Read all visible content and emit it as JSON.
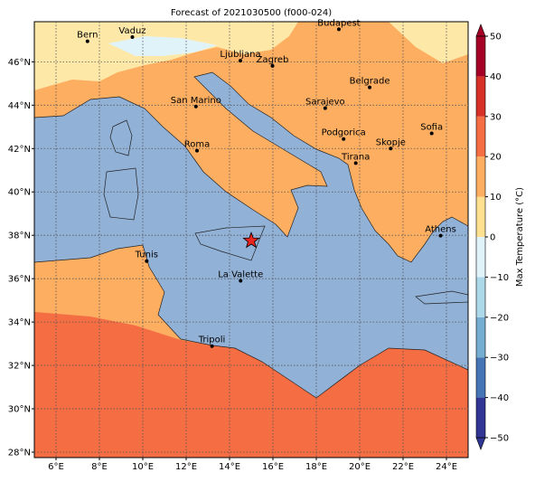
{
  "chart_data": {
    "type": "map",
    "title": "Forecast of 2021030500 (f000-024)",
    "xlim": [
      5,
      25
    ],
    "ylim": [
      27.75,
      47.85
    ],
    "xticks": [
      {
        "value": 6,
        "label": "6°E"
      },
      {
        "value": 8,
        "label": "8°E"
      },
      {
        "value": 10,
        "label": "10°E"
      },
      {
        "value": 12,
        "label": "12°E"
      },
      {
        "value": 14,
        "label": "14°E"
      },
      {
        "value": 16,
        "label": "16°E"
      },
      {
        "value": 18,
        "label": "18°E"
      },
      {
        "value": 20,
        "label": "20°E"
      },
      {
        "value": 22,
        "label": "22°E"
      },
      {
        "value": 24,
        "label": "24°E"
      }
    ],
    "yticks": [
      {
        "value": 28,
        "label": "28°N"
      },
      {
        "value": 30,
        "label": "30°N"
      },
      {
        "value": 32,
        "label": "32°N"
      },
      {
        "value": 34,
        "label": "34°N"
      },
      {
        "value": 36,
        "label": "36°N"
      },
      {
        "value": 38,
        "label": "38°N"
      },
      {
        "value": 40,
        "label": "40°N"
      },
      {
        "value": 42,
        "label": "42°N"
      },
      {
        "value": 44,
        "label": "44°N"
      },
      {
        "value": 46,
        "label": "46°N"
      }
    ],
    "grid": true,
    "cities": [
      {
        "name": "Bern",
        "lon": 7.45,
        "lat": 46.95
      },
      {
        "name": "Vaduz",
        "lon": 9.52,
        "lat": 47.14
      },
      {
        "name": "Budapest",
        "lon": 19.04,
        "lat": 47.5
      },
      {
        "name": "Ljubljana",
        "lon": 14.5,
        "lat": 46.05
      },
      {
        "name": "Zagreb",
        "lon": 15.98,
        "lat": 45.81
      },
      {
        "name": "Belgrade",
        "lon": 20.46,
        "lat": 44.82
      },
      {
        "name": "San Marino",
        "lon": 12.45,
        "lat": 43.94
      },
      {
        "name": "Sarajevo",
        "lon": 18.41,
        "lat": 43.86
      },
      {
        "name": "Sofia",
        "lon": 23.32,
        "lat": 42.7
      },
      {
        "name": "Podgorica",
        "lon": 19.26,
        "lat": 42.44
      },
      {
        "name": "Skopje",
        "lon": 21.43,
        "lat": 42.0
      },
      {
        "name": "Roma",
        "lon": 12.5,
        "lat": 41.9
      },
      {
        "name": "Tirana",
        "lon": 19.82,
        "lat": 41.33
      },
      {
        "name": "Athens",
        "lon": 23.73,
        "lat": 37.98
      },
      {
        "name": "Tunis",
        "lon": 10.18,
        "lat": 36.81
      },
      {
        "name": "La Valette",
        "lon": 14.51,
        "lat": 35.9
      },
      {
        "name": "Tripoli",
        "lon": 13.19,
        "lat": 32.89
      }
    ],
    "marker": {
      "lon": 15.0,
      "lat": 37.75,
      "color": "#e8251f"
    },
    "colorbar": {
      "label": "Max Temperature (°C)",
      "lim": [
        -50,
        50
      ],
      "ticks": [
        {
          "value": -50,
          "label": "−50"
        },
        {
          "value": -40,
          "label": "−40"
        },
        {
          "value": -30,
          "label": "−30"
        },
        {
          "value": -20,
          "label": "−20"
        },
        {
          "value": -10,
          "label": "−10"
        },
        0,
        10,
        20,
        30,
        40,
        50
      ],
      "colors": [
        "#313695",
        "#4575b4",
        "#74add1",
        "#abd9e9",
        "#e0f3f8",
        "#fee090",
        "#fdae61",
        "#f46d43",
        "#d73027",
        "#a50026"
      ]
    }
  }
}
